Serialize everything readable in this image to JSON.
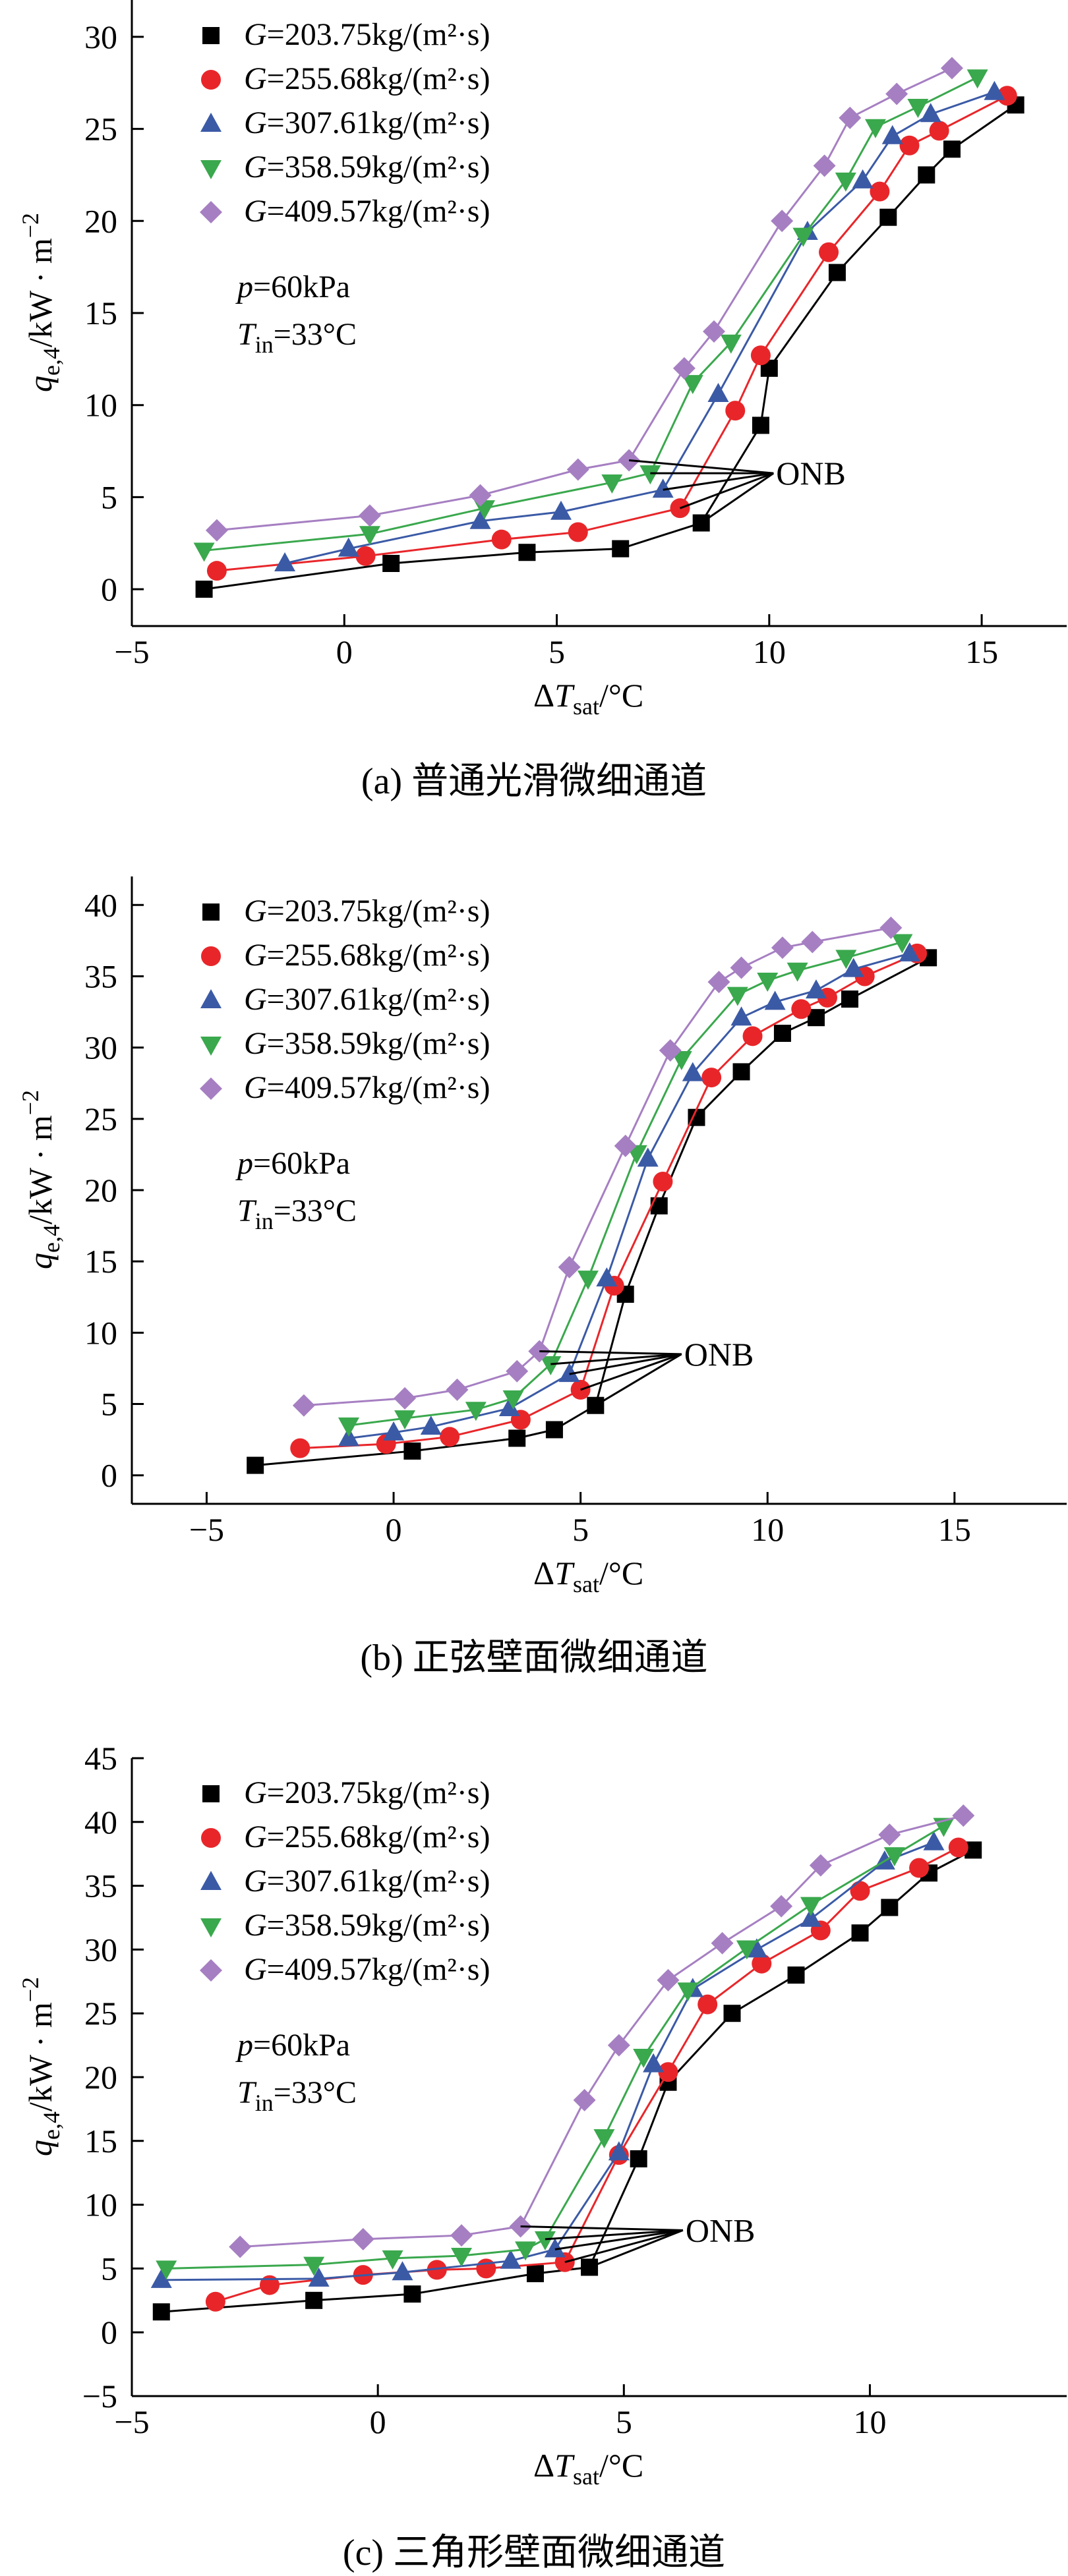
{
  "chart_data": [
    {
      "type": "scatter",
      "caption": "(a) 普通光滑微细通道",
      "xlabel": "ΔTsat/°C",
      "ylabel": "qe,4/kW·m−2",
      "xlim": [
        -5,
        17
      ],
      "ylim": [
        -2,
        32
      ],
      "xticks": [
        -5,
        0,
        5,
        10,
        15
      ],
      "yticks": [
        0,
        5,
        10,
        15,
        20,
        25,
        30
      ],
      "params": [
        "p=60kPa",
        "Tin=33°C"
      ],
      "annotation": "ONB",
      "onb_target": [
        10.1,
        6.3
      ],
      "series": [
        {
          "name": "G=203.75kg/(m²·s)",
          "marker": "square",
          "color": "#000000",
          "x": [
            -3.3,
            1.1,
            4.3,
            6.5,
            8.4,
            9.8,
            10.0,
            11.6,
            12.8,
            13.7,
            14.3,
            15.8
          ],
          "y": [
            0.0,
            1.4,
            2.0,
            2.2,
            3.6,
            8.9,
            12.0,
            17.2,
            20.2,
            22.5,
            23.9,
            26.3
          ],
          "onb": [
            8.4,
            3.6
          ]
        },
        {
          "name": "G=255.68kg/(m²·s)",
          "marker": "circle",
          "color": "#e8262a",
          "x": [
            -3.0,
            0.5,
            3.7,
            5.5,
            7.9,
            9.2,
            9.8,
            11.4,
            12.6,
            13.3,
            14.0,
            15.6
          ],
          "y": [
            1.0,
            1.8,
            2.7,
            3.1,
            4.4,
            9.7,
            12.7,
            18.3,
            21.6,
            24.1,
            24.9,
            26.8
          ],
          "onb": [
            7.9,
            4.4
          ]
        },
        {
          "name": "G=307.61kg/(m²·s)",
          "marker": "triangle-up",
          "color": "#3b5aa6",
          "x": [
            -1.4,
            0.1,
            3.2,
            5.1,
            7.5,
            8.8,
            10.9,
            12.2,
            12.9,
            13.8,
            15.3
          ],
          "y": [
            1.4,
            2.2,
            3.7,
            4.2,
            5.4,
            10.6,
            19.4,
            22.2,
            24.6,
            25.8,
            27.0
          ],
          "onb": [
            7.5,
            5.4
          ]
        },
        {
          "name": "G=358.59kg/(m²·s)",
          "marker": "triangle-down",
          "color": "#3aa84d",
          "x": [
            -3.3,
            0.6,
            3.3,
            6.3,
            7.2,
            8.2,
            9.1,
            10.8,
            11.8,
            12.5,
            13.5,
            14.9
          ],
          "y": [
            2.1,
            3.0,
            4.4,
            5.8,
            6.3,
            11.2,
            13.4,
            19.2,
            22.2,
            25.1,
            26.2,
            27.8
          ],
          "onb": [
            7.2,
            6.3
          ]
        },
        {
          "name": "G=409.57kg/(m²·s)",
          "marker": "diamond",
          "color": "#a67fc2",
          "x": [
            -3.0,
            0.6,
            3.2,
            5.5,
            6.7,
            8.0,
            8.7,
            10.3,
            11.3,
            11.9,
            13.0,
            14.3
          ],
          "y": [
            3.2,
            4.0,
            5.1,
            6.5,
            7.0,
            12.0,
            14.0,
            20.0,
            23.0,
            25.6,
            26.9,
            28.3
          ],
          "onb": [
            6.7,
            7.0
          ]
        }
      ]
    },
    {
      "type": "scatter",
      "caption": "(b) 正弦壁面微细通道",
      "xlabel": "ΔTsat/°C",
      "ylabel": "qe,4/kW·m−2",
      "xlim": [
        -7,
        18
      ],
      "ylim": [
        -2,
        42
      ],
      "xticks": [
        -5,
        0,
        5,
        10,
        15
      ],
      "yticks": [
        0,
        5,
        10,
        15,
        20,
        25,
        30,
        35,
        40
      ],
      "params": [
        "p=60kPa",
        "Tin=33°C"
      ],
      "annotation": "ONB",
      "onb_target": [
        7.7,
        8.5
      ],
      "series": [
        {
          "name": "G=203.75kg/(m²·s)",
          "marker": "square",
          "color": "#000000",
          "x": [
            -3.7,
            0.5,
            3.3,
            4.3,
            5.4,
            6.2,
            7.1,
            8.1,
            9.3,
            10.4,
            11.3,
            12.2,
            14.3
          ],
          "y": [
            0.7,
            1.7,
            2.6,
            3.2,
            4.9,
            12.7,
            18.9,
            25.1,
            28.3,
            31.0,
            32.1,
            33.4,
            36.3
          ],
          "onb": [
            5.4,
            4.9
          ]
        },
        {
          "name": "G=255.68kg/(m²·s)",
          "marker": "circle",
          "color": "#e8262a",
          "x": [
            -2.5,
            -0.2,
            1.5,
            3.4,
            5.0,
            5.9,
            7.2,
            8.5,
            9.6,
            10.9,
            11.6,
            12.6,
            14.0
          ],
          "y": [
            1.9,
            2.2,
            2.7,
            3.9,
            6.0,
            13.3,
            20.6,
            27.9,
            30.8,
            32.7,
            33.5,
            35.0,
            36.6
          ],
          "onb": [
            5.0,
            6.0
          ]
        },
        {
          "name": "G=307.61kg/(m²·s)",
          "marker": "triangle-up",
          "color": "#3b5aa6",
          "x": [
            -1.2,
            0.0,
            1.0,
            3.1,
            4.7,
            5.7,
            6.8,
            8.0,
            9.3,
            10.2,
            11.3,
            12.3,
            13.8
          ],
          "y": [
            2.6,
            3.0,
            3.4,
            4.7,
            7.1,
            13.8,
            22.2,
            28.2,
            32.1,
            33.2,
            34.0,
            35.5,
            36.6
          ],
          "onb": [
            4.7,
            7.1
          ]
        },
        {
          "name": "G=358.59kg/(m²·s)",
          "marker": "triangle-down",
          "color": "#3aa84d",
          "x": [
            -1.2,
            0.3,
            2.2,
            3.2,
            4.2,
            5.2,
            6.5,
            7.7,
            9.2,
            10.0,
            10.8,
            12.1,
            13.6
          ],
          "y": [
            3.5,
            4.0,
            4.6,
            5.4,
            7.8,
            13.8,
            22.6,
            29.2,
            33.7,
            34.7,
            35.4,
            36.3,
            37.4
          ],
          "onb": [
            4.2,
            7.8
          ]
        },
        {
          "name": "G=409.57kg/(m²·s)",
          "marker": "diamond",
          "color": "#a67fc2",
          "x": [
            -2.4,
            0.3,
            1.7,
            3.3,
            3.9,
            4.7,
            6.2,
            7.4,
            8.7,
            9.3,
            10.4,
            11.2,
            13.3
          ],
          "y": [
            4.9,
            5.4,
            6.0,
            7.3,
            8.7,
            14.6,
            23.1,
            29.8,
            34.6,
            35.6,
            37.0,
            37.4,
            38.4
          ],
          "onb": [
            3.9,
            8.7
          ]
        }
      ]
    },
    {
      "type": "scatter",
      "caption": "(c) 三角形壁面微细通道",
      "xlabel": "ΔTsat/°C",
      "ylabel": "qe,4/kW·m−2",
      "xlim": [
        -5,
        14
      ],
      "ylim": [
        -5,
        45
      ],
      "xticks": [
        -5,
        0,
        5,
        10
      ],
      "yticks": [
        -5,
        0,
        5,
        10,
        15,
        20,
        25,
        30,
        35,
        40,
        45
      ],
      "params": [
        "p=60kPa",
        "Tin=33°C"
      ],
      "annotation": "ONB",
      "onb_target": [
        6.2,
        8.0
      ],
      "series": [
        {
          "name": "G=203.75kg/(m²·s)",
          "marker": "square",
          "color": "#000000",
          "x": [
            -4.4,
            -1.3,
            0.7,
            3.2,
            4.3,
            5.3,
            5.9,
            7.2,
            8.5,
            9.8,
            10.4,
            11.2,
            12.1
          ],
          "y": [
            1.6,
            2.5,
            3.0,
            4.6,
            5.1,
            13.6,
            19.6,
            25.0,
            28.0,
            31.3,
            33.3,
            36.0,
            37.8
          ],
          "onb": [
            4.3,
            5.1
          ]
        },
        {
          "name": "G=255.68kg/(m²·s)",
          "marker": "circle",
          "color": "#e8262a",
          "x": [
            -3.3,
            -2.2,
            -0.3,
            1.2,
            2.2,
            3.8,
            4.9,
            5.9,
            6.7,
            7.8,
            9.0,
            9.8,
            11.0,
            11.8
          ],
          "y": [
            2.4,
            3.7,
            4.5,
            4.9,
            5.0,
            5.5,
            13.9,
            20.4,
            25.7,
            28.9,
            31.5,
            34.6,
            36.4,
            38.0
          ],
          "onb": [
            3.8,
            5.5
          ]
        },
        {
          "name": "G=307.61kg/(m²·s)",
          "marker": "triangle-up",
          "color": "#3b5aa6",
          "x": [
            -4.4,
            -1.2,
            0.5,
            2.7,
            3.6,
            4.9,
            5.6,
            6.4,
            7.7,
            8.8,
            10.3,
            11.3
          ],
          "y": [
            4.1,
            4.2,
            4.7,
            5.6,
            6.5,
            14.1,
            21.0,
            26.9,
            30.0,
            32.4,
            36.9,
            38.4
          ],
          "onb": [
            3.6,
            6.5
          ]
        },
        {
          "name": "G=358.59kg/(m²·s)",
          "marker": "triangle-down",
          "color": "#3aa84d",
          "x": [
            -4.3,
            -1.3,
            0.3,
            1.7,
            3.0,
            3.4,
            4.6,
            5.4,
            6.3,
            7.5,
            8.8,
            10.5,
            11.5
          ],
          "y": [
            5.0,
            5.3,
            5.8,
            6.0,
            6.5,
            7.3,
            15.3,
            21.6,
            26.8,
            30.1,
            33.5,
            37.4,
            39.7
          ],
          "onb": [
            3.4,
            7.3
          ]
        },
        {
          "name": "G=409.57kg/(m²·s)",
          "marker": "diamond",
          "color": "#a67fc2",
          "x": [
            -2.8,
            -0.3,
            1.7,
            2.9,
            4.2,
            4.9,
            5.9,
            7.0,
            8.2,
            9.0,
            10.4,
            11.9
          ],
          "y": [
            6.7,
            7.3,
            7.6,
            8.3,
            18.2,
            22.5,
            27.6,
            30.5,
            33.4,
            36.6,
            39.0,
            40.5
          ],
          "onb": [
            2.9,
            8.3
          ]
        }
      ]
    }
  ]
}
